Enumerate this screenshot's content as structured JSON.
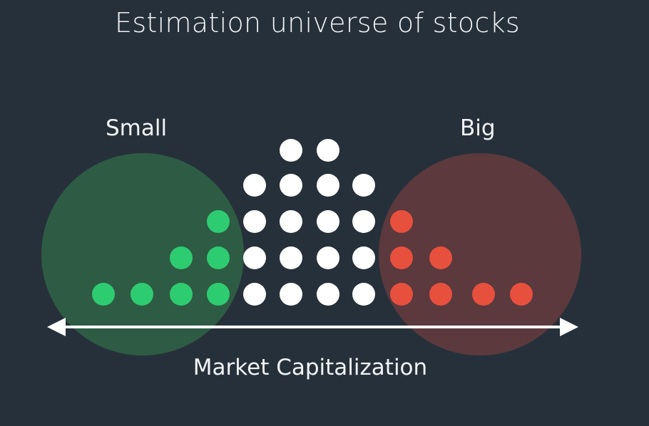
{
  "title": "Estimation universe of stocks",
  "groups": {
    "small": {
      "label": "Small",
      "circle_color": "#2e5e45",
      "dot_color": "#2ecc71"
    },
    "big": {
      "label": "Big",
      "circle_color": "#5e3a3d",
      "dot_color": "#e8503e"
    },
    "middle": {
      "dot_color": "#ffffff"
    }
  },
  "axis": {
    "label": "Market Capitalization",
    "direction": "bidirectional"
  },
  "dot_columns": [
    {
      "group": "small",
      "count": 1
    },
    {
      "group": "small",
      "count": 1
    },
    {
      "group": "small",
      "count": 2
    },
    {
      "group": "small",
      "count": 3
    },
    {
      "group": "middle",
      "count": 4
    },
    {
      "group": "middle",
      "count": 5
    },
    {
      "group": "middle",
      "count": 5
    },
    {
      "group": "middle",
      "count": 4
    },
    {
      "group": "big",
      "count": 3
    },
    {
      "group": "big",
      "count": 2
    },
    {
      "group": "big",
      "count": 1
    },
    {
      "group": "big",
      "count": 1
    }
  ]
}
